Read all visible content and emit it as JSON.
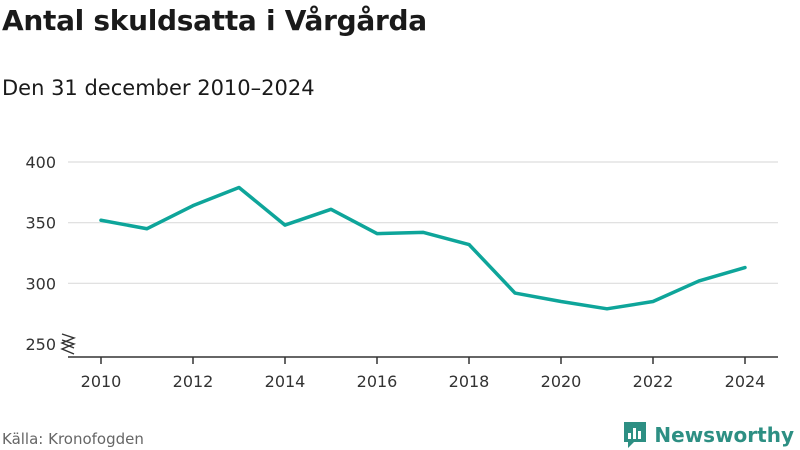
{
  "header": {
    "title": "Antal skuldsatta i Vårgårda",
    "subtitle": "Den 31 december 2010–2024"
  },
  "footer": {
    "source": "Källa: Kronofogden",
    "brand": "Newsworthy"
  },
  "colors": {
    "line": "#0ea59a",
    "grid": "#dddddd",
    "axis": "#333333",
    "brand": "#2d8f83"
  },
  "chart_data": {
    "type": "line",
    "title": "Antal skuldsatta i Vårgårda",
    "subtitle": "Den 31 december 2010–2024",
    "xlabel": "",
    "ylabel": "",
    "x": [
      2010,
      2011,
      2012,
      2013,
      2014,
      2015,
      2016,
      2017,
      2018,
      2019,
      2020,
      2021,
      2022,
      2023,
      2024
    ],
    "series": [
      {
        "name": "Antal skuldsatta",
        "values": [
          352,
          345,
          364,
          379,
          348,
          361,
          341,
          342,
          332,
          292,
          285,
          279,
          285,
          302,
          313
        ]
      }
    ],
    "xticks": [
      "2010",
      "2012",
      "2014",
      "2016",
      "2018",
      "2020",
      "2022",
      "2024"
    ],
    "yticks": [
      "250",
      "300",
      "350",
      "400"
    ],
    "ylim": [
      250,
      400
    ],
    "xlim": [
      2010,
      2024
    ],
    "axis_break": true,
    "grid": true,
    "legend": "none"
  }
}
